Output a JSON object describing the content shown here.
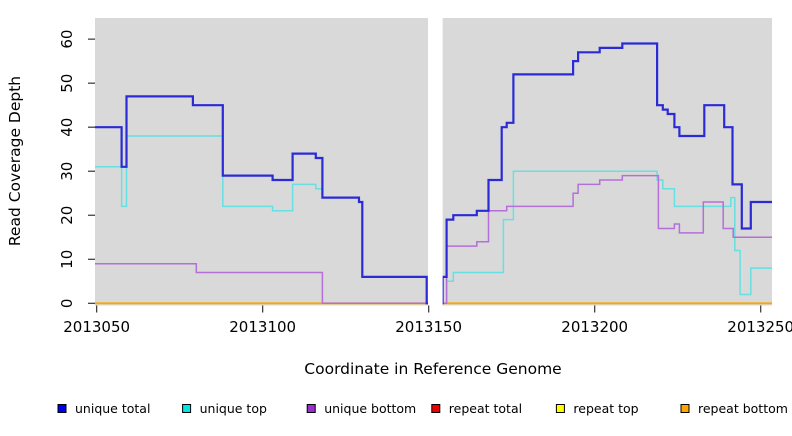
{
  "chart_data": {
    "type": "line",
    "subtype": "step",
    "title": "",
    "xlabel": "Coordinate in Reference Genome",
    "ylabel": "Read Coverage Depth",
    "xlim": [
      2013049.5,
      2013253.4
    ],
    "ylim": [
      -0.5,
      64.8
    ],
    "x_ticks": [
      2013050,
      2013100,
      2013150,
      2013200,
      2013250
    ],
    "y_ticks": [
      0,
      10,
      20,
      30,
      40,
      50,
      60
    ],
    "grid": "off",
    "panel_bg": "#d9d9d9",
    "gap_band": {
      "x0": 2013149.8,
      "x1": 2013154.2,
      "color": "#ffffff"
    },
    "legend_position": "bottom",
    "series": [
      {
        "name": "unique total",
        "color": "#2b2bd5",
        "legend_color": "#0000ee",
        "line_width": 2.2,
        "z": 6,
        "points": [
          [
            2013049.5,
            40
          ],
          [
            2013057.5,
            31
          ],
          [
            2013059,
            47
          ],
          [
            2013079,
            45
          ],
          [
            2013088,
            29
          ],
          [
            2013103,
            28
          ],
          [
            2013109,
            34
          ],
          [
            2013116,
            33
          ],
          [
            2013118,
            24
          ],
          [
            2013129,
            23
          ],
          [
            2013130,
            6
          ],
          [
            2013149.4,
            0
          ],
          [
            2013154.2,
            6
          ],
          [
            2013155.4,
            19
          ],
          [
            2013157.4,
            20
          ],
          [
            2013164.5,
            21
          ],
          [
            2013168,
            28
          ],
          [
            2013172,
            40
          ],
          [
            2013173.5,
            41
          ],
          [
            2013175.5,
            52
          ],
          [
            2013193.5,
            55
          ],
          [
            2013195,
            57
          ],
          [
            2013201.5,
            58
          ],
          [
            2013208.3,
            59
          ],
          [
            2013218.8,
            45
          ],
          [
            2013220.5,
            44
          ],
          [
            2013222,
            43
          ],
          [
            2013224,
            40
          ],
          [
            2013225.5,
            38
          ],
          [
            2013233,
            45
          ],
          [
            2013239,
            40
          ],
          [
            2013241.5,
            27
          ],
          [
            2013244.3,
            17
          ],
          [
            2013247,
            23
          ]
        ]
      },
      {
        "name": "unique top",
        "color": "#66e0e0",
        "legend_color": "#00e5e5",
        "line_width": 1.5,
        "z": 4,
        "points": [
          [
            2013049.5,
            31
          ],
          [
            2013057.5,
            22
          ],
          [
            2013059,
            38
          ],
          [
            2013088,
            22
          ],
          [
            2013103,
            21
          ],
          [
            2013109,
            27
          ],
          [
            2013116,
            26
          ],
          [
            2013118,
            24
          ],
          [
            2013129,
            23
          ],
          [
            2013130,
            6
          ],
          [
            2013149.4,
            0
          ],
          [
            2013155.4,
            5
          ],
          [
            2013157.4,
            7
          ],
          [
            2013172.5,
            19
          ],
          [
            2013175.5,
            30
          ],
          [
            2013218.8,
            28
          ],
          [
            2013220.5,
            26
          ],
          [
            2013224,
            22
          ],
          [
            2013241,
            24
          ],
          [
            2013242.2,
            12
          ],
          [
            2013243.8,
            2
          ],
          [
            2013247,
            8
          ]
        ]
      },
      {
        "name": "unique bottom",
        "color": "#b56fd8",
        "legend_color": "#9a2fd0",
        "line_width": 1.5,
        "z": 5,
        "points": [
          [
            2013049.5,
            9
          ],
          [
            2013080,
            7
          ],
          [
            2013118,
            0
          ],
          [
            2013155.4,
            13
          ],
          [
            2013164.5,
            14
          ],
          [
            2013168,
            21
          ],
          [
            2013173.5,
            22
          ],
          [
            2013193.5,
            25
          ],
          [
            2013195,
            27
          ],
          [
            2013201.5,
            28
          ],
          [
            2013208.3,
            29
          ],
          [
            2013219.2,
            17
          ],
          [
            2013224,
            18
          ],
          [
            2013225.5,
            16
          ],
          [
            2013232.7,
            23
          ],
          [
            2013238.7,
            17
          ],
          [
            2013241.7,
            15
          ]
        ]
      },
      {
        "name": "repeat total",
        "color": "#dd2222",
        "legend_color": "#ee0000",
        "line_width": 1.5,
        "z": 1,
        "points": [
          [
            2013049.5,
            0
          ]
        ]
      },
      {
        "name": "repeat top",
        "color": "#ffff00",
        "legend_color": "#ffff00",
        "line_width": 1.5,
        "z": 2,
        "points": [
          [
            2013049.5,
            0
          ]
        ]
      },
      {
        "name": "repeat bottom",
        "color": "#ffa500",
        "legend_color": "#ffa500",
        "line_width": 1.8,
        "z": 3,
        "points": [
          [
            2013049.5,
            0
          ]
        ]
      }
    ]
  }
}
